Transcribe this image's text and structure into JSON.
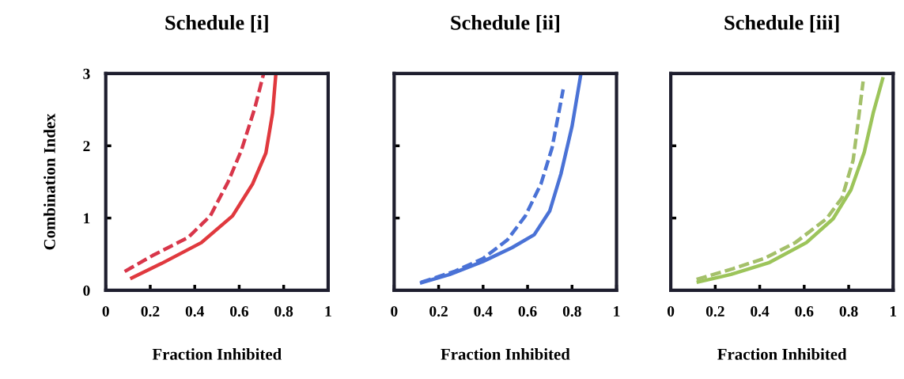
{
  "chart_data": [
    {
      "type": "line",
      "title": "Schedule [i]",
      "xlabel": "Fraction Inhibited",
      "ylabel": "Combination Index",
      "xlim": [
        0,
        1
      ],
      "ylim": [
        0,
        3
      ],
      "xticks": [
        0,
        0.2,
        0.4,
        0.6,
        0.8,
        1
      ],
      "yticks": [
        0,
        1,
        2,
        3
      ],
      "grid": false,
      "series": [
        {
          "color": "#e0393e",
          "line_style": "solid",
          "x": [
            0.11,
            0.25,
            0.43,
            0.57,
            0.66,
            0.72,
            0.75,
            0.765
          ],
          "values": [
            0.16,
            0.37,
            0.66,
            1.03,
            1.47,
            1.9,
            2.45,
            3.0
          ]
        },
        {
          "color": "#d8364a",
          "line_style": "dashed",
          "x": [
            0.085,
            0.21,
            0.37,
            0.47,
            0.55,
            0.61,
            0.67,
            0.71
          ],
          "values": [
            0.26,
            0.48,
            0.73,
            1.03,
            1.5,
            1.94,
            2.52,
            3.0
          ]
        }
      ]
    },
    {
      "type": "line",
      "title": "Schedule [ii]",
      "xlabel": "Fraction Inhibited",
      "xlim": [
        0,
        1
      ],
      "ylim": [
        0,
        3
      ],
      "xticks": [
        0,
        0.2,
        0.4,
        0.6,
        0.8,
        1
      ],
      "yticks": [
        0,
        1,
        2,
        3
      ],
      "tick_labels": "x",
      "grid": false,
      "series": [
        {
          "color": "#4a72d6",
          "line_style": "solid",
          "x": [
            0.116,
            0.25,
            0.4,
            0.53,
            0.63,
            0.7,
            0.75,
            0.8,
            0.84
          ],
          "values": [
            0.1,
            0.22,
            0.4,
            0.59,
            0.77,
            1.1,
            1.61,
            2.27,
            3.0
          ]
        },
        {
          "color": "#4a72d6",
          "line_style": "dashed",
          "x": [
            0.12,
            0.27,
            0.4,
            0.51,
            0.59,
            0.66,
            0.71,
            0.74,
            0.76
          ],
          "values": [
            0.11,
            0.26,
            0.44,
            0.7,
            1.03,
            1.47,
            1.97,
            2.45,
            2.78
          ]
        }
      ]
    },
    {
      "type": "line",
      "title": "Schedule [iii]",
      "xlabel": "Fraction Inhibited",
      "xlim": [
        0,
        1
      ],
      "ylim": [
        0,
        3
      ],
      "xticks": [
        0,
        0.2,
        0.4,
        0.6,
        0.8,
        1
      ],
      "yticks": [
        0,
        1,
        2,
        3
      ],
      "tick_labels": "x",
      "grid": false,
      "series": [
        {
          "color": "#9cc45a",
          "line_style": "solid",
          "x": [
            0.116,
            0.27,
            0.44,
            0.61,
            0.73,
            0.81,
            0.87,
            0.91,
            0.955
          ],
          "values": [
            0.11,
            0.22,
            0.38,
            0.66,
            0.99,
            1.39,
            1.91,
            2.45,
            2.95
          ]
        },
        {
          "color": "#a4c06a",
          "line_style": "dashed",
          "x": [
            0.116,
            0.28,
            0.42,
            0.56,
            0.7,
            0.77,
            0.82,
            0.84,
            0.865
          ],
          "values": [
            0.15,
            0.3,
            0.44,
            0.66,
            0.99,
            1.28,
            1.8,
            2.27,
            2.89
          ]
        }
      ]
    }
  ]
}
